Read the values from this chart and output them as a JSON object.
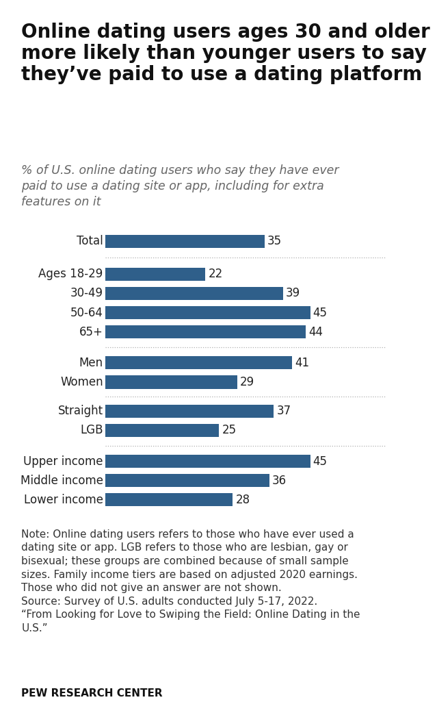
{
  "title_line1": "Online dating users ages 30 and older",
  "title_line2": "more likely than younger users to say",
  "title_line3": "they’ve paid to use a dating platform",
  "subtitle": "% of U.S. online dating users who say they have ever\npaid to use a dating site or app, including for extra\nfeatures on it",
  "categories": [
    "Total",
    "Ages 18-29",
    "30-49",
    "50-64",
    "65+",
    "Men",
    "Women",
    "Straight",
    "LGB",
    "Upper income",
    "Middle income",
    "Lower income"
  ],
  "values": [
    35,
    22,
    39,
    45,
    44,
    41,
    29,
    37,
    25,
    45,
    36,
    28
  ],
  "bar_color": "#2f5f8a",
  "background_color": "#ffffff",
  "note_line1": "Note: Online dating users refers to those who have ever used a",
  "note_line2": "dating site or app. LGB refers to those who are lesbian, gay or",
  "note_line3": "bisexual; these groups are combined because of small sample",
  "note_line4": "sizes. Family income tiers are based on adjusted 2020 earnings.",
  "note_line5": "Those who did not give an answer are not shown.",
  "note_line6": "Source: Survey of U.S. adults conducted July 5-17, 2022.",
  "note_line7": "“From Looking for Love to Swiping the Field: Online Dating in the",
  "note_line8": "U.S.”",
  "source_label": "PEW RESEARCH CENTER",
  "xlim": [
    0,
    52
  ],
  "title_fontsize": 20,
  "subtitle_fontsize": 12.5,
  "label_fontsize": 12,
  "value_fontsize": 12,
  "note_fontsize": 11
}
